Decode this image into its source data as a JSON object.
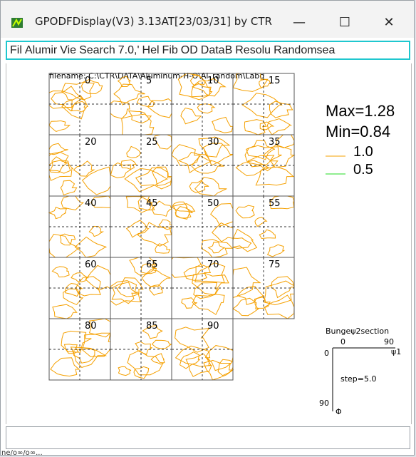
{
  "window": {
    "title": "GPODFDisplay(V3) 3.13AT[23/03/31] by CTR",
    "minimize_glyph": "—",
    "maximize_glyph": "☐",
    "close_glyph": "✕"
  },
  "menu": {
    "items": [
      "Fil",
      "Alumir",
      "Vie",
      "Search",
      "7.0,'",
      "Hel",
      "Fib",
      "OD",
      "DataB",
      "Resolu",
      "Randomsea"
    ]
  },
  "plot": {
    "filename": "filename: C:\\CTR\\DATA\\Aluminum-H-O\\Al_random\\Labo",
    "max_label": "Max=1.28",
    "min_label": "Min=0.84",
    "legend": [
      {
        "label": "1.0",
        "color": "#f5a000"
      },
      {
        "label": "0.5",
        "color": "#22dd22"
      }
    ],
    "sections": [
      "0",
      "5",
      "10",
      "15",
      "20",
      "25",
      "30",
      "35",
      "40",
      "45",
      "50",
      "55",
      "60",
      "65",
      "70",
      "75",
      "80",
      "85",
      "90"
    ],
    "contour_color": "#f5a000",
    "key": {
      "title": "Bungeψ2section",
      "origin": "0",
      "x_zero": "0",
      "x_max": "90",
      "x_axis": "ψ1",
      "step": "step=5.0",
      "y_max": "90",
      "y_axis": "Φ"
    }
  },
  "status": {
    "text": "",
    "cut_text": "ne/o∞/o∞..."
  }
}
